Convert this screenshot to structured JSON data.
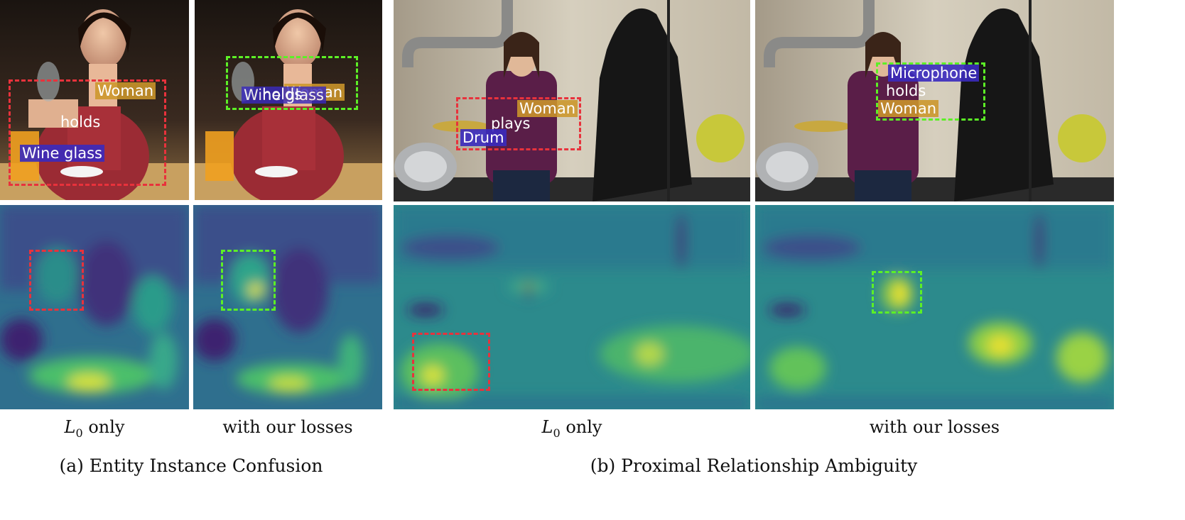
{
  "panels": {
    "a": {
      "caption": "(a) Entity Instance Confusion",
      "col1_caption": "only",
      "col2_caption": "with our losses",
      "col1_math": "L",
      "col1_math_sub": "0",
      "left_photo": {
        "subject": "Woman",
        "predicate": "holds",
        "object": "Wine glass"
      },
      "right_photo": {
        "subject": "Woman",
        "predicate": "holds",
        "object": "Wine glass"
      }
    },
    "b": {
      "caption": "(b) Proximal Relationship Ambiguity",
      "col1_caption": "only",
      "col2_caption": "with our losses",
      "col1_math": "L",
      "col1_math_sub": "0",
      "left_photo": {
        "subject": "Woman",
        "predicate": "plays",
        "object": "Drum"
      },
      "right_photo": {
        "subject": "Woman",
        "predicate": "holds",
        "object": "Microphone"
      }
    }
  },
  "colors": {
    "error_box": "#e8323c",
    "correct_box": "#5cf026",
    "subject_tag": "#cc962a",
    "object_tag": "#3a2abe",
    "heatmap_low": "#3b1f6b",
    "heatmap_mid": "#2a9b8a",
    "heatmap_high": "#f2e41e"
  }
}
